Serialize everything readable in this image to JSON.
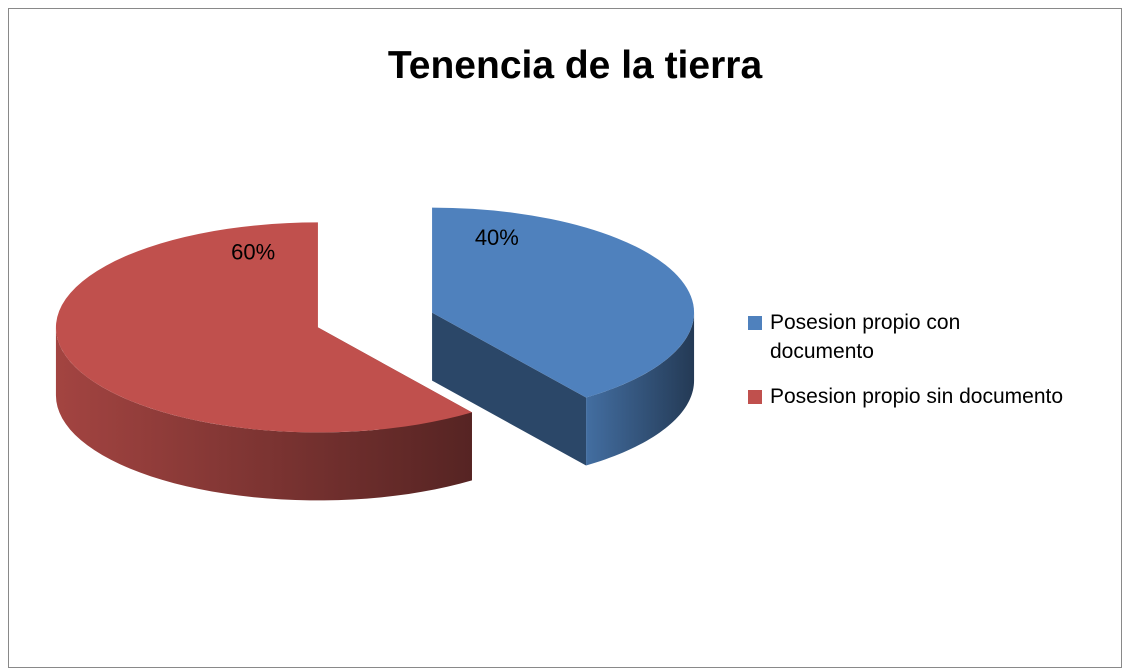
{
  "chart_data": {
    "type": "pie",
    "title": "Tenencia de la tierra",
    "categories": [
      "Posesion propio con documento",
      "Posesion propio sin documento"
    ],
    "values": [
      40,
      60
    ],
    "value_labels": [
      "40%",
      "60%"
    ],
    "colors": [
      "#4f81bd",
      "#c0504d"
    ],
    "legend": "right"
  }
}
